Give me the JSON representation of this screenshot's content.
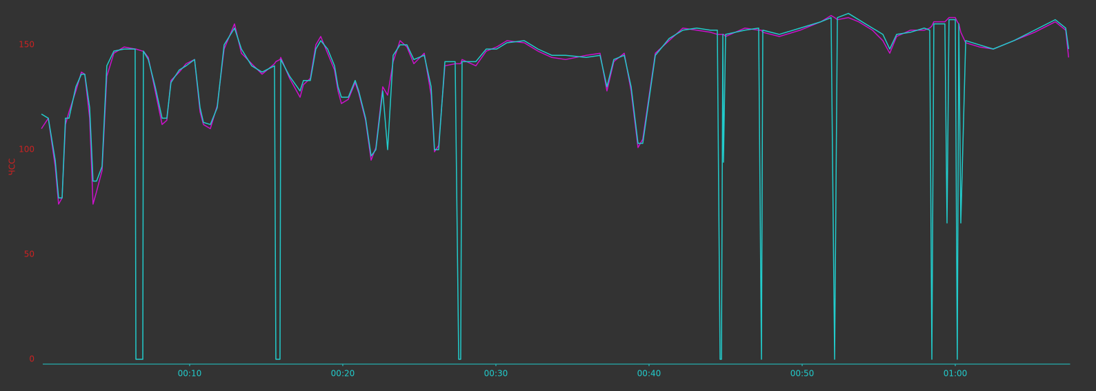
{
  "chart_data": {
    "type": "line",
    "y_label": "ЧСС",
    "x": [
      0.32,
      0.77,
      1.22,
      1.44,
      1.67,
      1.89,
      2.12,
      2.57,
      2.93,
      3.15,
      3.47,
      3.69,
      3.92,
      4.28,
      4.59,
      5.05,
      5.72,
      6.44,
      6.49,
      6.94,
      6.98,
      7.3,
      7.75,
      8.2,
      8.51,
      8.78,
      9.32,
      9.77,
      10.32,
      10.68,
      10.9,
      11.35,
      11.8,
      12.25,
      12.93,
      13.38,
      14.05,
      14.73,
      15.54,
      15.63,
      15.9,
      15.95,
      16.53,
      17.21,
      17.43,
      17.88,
      18.24,
      18.56,
      19.01,
      19.46,
      19.69,
      19.91,
      20.36,
      20.81,
      21.04,
      21.49,
      21.85,
      22.16,
      22.61,
      22.93,
      23.29,
      23.74,
      24.19,
      24.64,
      25.32,
      25.77,
      25.99,
      26.26,
      26.67,
      27.34,
      27.57,
      27.7,
      27.79,
      28.69,
      29.37,
      30.05,
      30.72,
      31.85,
      32.75,
      33.65,
      34.55,
      35.9,
      36.8,
      37.25,
      37.7,
      38.38,
      38.83,
      39.28,
      39.59,
      40.41,
      41.31,
      42.21,
      43.11,
      44.01,
      44.46,
      44.64,
      44.73,
      44.82,
      44.86,
      45.0,
      46.26,
      47.16,
      47.34,
      47.43,
      48.51,
      49.87,
      51.22,
      51.89,
      52.12,
      52.3,
      53.02,
      53.69,
      54.59,
      55.27,
      55.72,
      56.17,
      57.07,
      57.97,
      58.33,
      58.47,
      58.6,
      59.32,
      59.46,
      59.59,
      60.0,
      60.13,
      60.23,
      60.36,
      60.68,
      61.58,
      62.48,
      63.83,
      65.18,
      66.53,
      67.21,
      67.4
    ],
    "series": [
      {
        "color": "#cc11cc",
        "values": [
          110,
          115,
          92,
          74,
          77,
          112,
          118,
          128,
          137,
          136,
          115,
          74,
          80,
          90,
          135,
          146,
          149,
          148,
          148,
          147,
          147,
          144,
          128,
          112,
          114,
          133,
          137,
          141,
          143,
          118,
          112,
          110,
          121,
          148,
          160,
          146,
          141,
          136,
          141,
          142,
          143,
          144,
          134,
          125,
          131,
          134,
          150,
          154,
          146,
          138,
          128,
          122,
          124,
          132,
          127,
          114,
          95,
          101,
          130,
          126,
          142,
          152,
          149,
          141,
          146,
          126,
          99,
          102,
          140,
          141,
          141,
          141,
          143,
          140,
          147,
          149,
          152,
          151,
          147,
          144,
          143,
          145,
          146,
          128,
          142,
          146,
          128,
          101,
          105,
          146,
          152,
          158,
          157,
          156,
          155,
          155,
          155,
          155,
          155,
          154,
          158,
          157,
          157,
          156,
          154,
          157,
          161,
          164,
          163,
          162,
          163,
          161,
          157,
          152,
          146,
          154,
          157,
          157,
          158,
          159,
          161,
          161,
          162,
          163,
          163,
          161,
          160,
          156,
          151,
          149,
          148,
          152,
          156,
          161,
          157,
          144
        ]
      },
      {
        "color": "#22cccc",
        "values": [
          117,
          115,
          95,
          77,
          77,
          115,
          115,
          130,
          136,
          136,
          120,
          85,
          85,
          92,
          140,
          147,
          148,
          148,
          0,
          0,
          147,
          143,
          130,
          115,
          115,
          132,
          138,
          140,
          143,
          120,
          113,
          112,
          120,
          150,
          158,
          148,
          140,
          137,
          140,
          0,
          0,
          143,
          135,
          128,
          133,
          133,
          148,
          152,
          148,
          140,
          130,
          125,
          125,
          133,
          128,
          115,
          97,
          100,
          128,
          100,
          145,
          150,
          150,
          143,
          145,
          130,
          100,
          100,
          142,
          142,
          0,
          0,
          142,
          142,
          148,
          148,
          151,
          152,
          148,
          145,
          145,
          144,
          145,
          130,
          143,
          145,
          130,
          103,
          103,
          145,
          153,
          157,
          158,
          157,
          157,
          0,
          0,
          155,
          94,
          155,
          157,
          158,
          0,
          157,
          155,
          158,
          161,
          163,
          0,
          163,
          165,
          162,
          158,
          155,
          148,
          155,
          156,
          158,
          157,
          0,
          160,
          160,
          65,
          162,
          162,
          0,
          160,
          65,
          152,
          150,
          148,
          152,
          157,
          162,
          158,
          148
        ]
      }
    ],
    "xlim": [
      0.2,
      67.5
    ],
    "xticks": [
      {
        "value": 10,
        "label": "00:10"
      },
      {
        "value": 20,
        "label": "00:20"
      },
      {
        "value": 30,
        "label": "00:30"
      },
      {
        "value": 40,
        "label": "00:40"
      },
      {
        "value": 50,
        "label": "00:50"
      },
      {
        "value": 60,
        "label": "01:00"
      }
    ],
    "ylim": [
      -2.3,
      171
    ],
    "yticks": [
      0,
      50,
      100,
      150
    ],
    "grid": false
  }
}
